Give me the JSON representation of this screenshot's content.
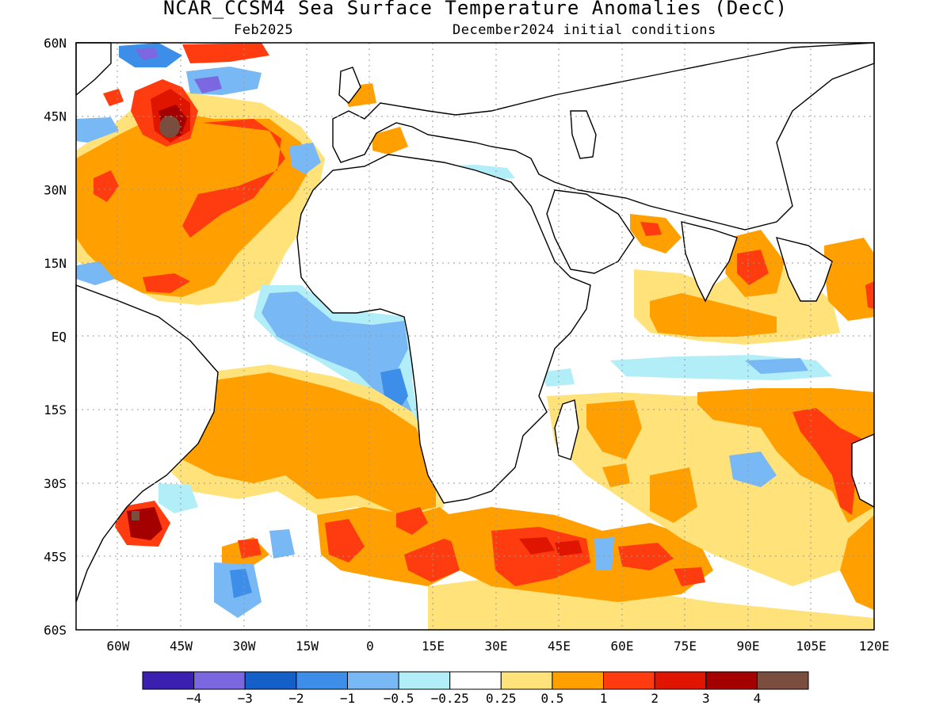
{
  "title": "NCAR_CCSM4 Sea Surface Temperature Anomalies (DecC)",
  "subtitle_left": "Feb2025",
  "subtitle_right": "December2024 initial conditions",
  "map": {
    "projection": "lat-lon",
    "lon_range": [
      -70,
      120
    ],
    "lat_range": [
      -60,
      60
    ],
    "lat_ticks": [
      "60N",
      "45N",
      "30N",
      "15N",
      "EQ",
      "15S",
      "30S",
      "45S",
      "60S"
    ],
    "lon_ticks": [
      "60W",
      "45W",
      "30W",
      "15W",
      "0",
      "15E",
      "30E",
      "45E",
      "60E",
      "75E",
      "90E",
      "105E",
      "120E"
    ],
    "gridlines": "dotted"
  },
  "colorbar": {
    "labels": [
      "−4",
      "−3",
      "−2",
      "−1",
      "−0.5",
      "−0.25",
      "0.25",
      "0.5",
      "1",
      "2",
      "3",
      "4"
    ],
    "colors": [
      "#3a1fb0",
      "#7b68e0",
      "#1560c8",
      "#3c8ee8",
      "#78b8f5",
      "#b2eef8",
      "#ffffff",
      "#ffe27a",
      "#ffa000",
      "#ff3b10",
      "#e01500",
      "#a50000",
      "#7a4e3f"
    ]
  },
  "fields": {
    "colors": {
      "n4": "#3a1fb0",
      "n3": "#7b68e0",
      "n2": "#1560c8",
      "n1": "#3c8ee8",
      "n05": "#78b8f5",
      "n025": "#b2eef8",
      "p025": "#ffe27a",
      "p05": "#ffa000",
      "p1": "#ff3b10",
      "p2": "#e01500",
      "p3": "#a50000",
      "p4": "#7a4e3f"
    }
  }
}
